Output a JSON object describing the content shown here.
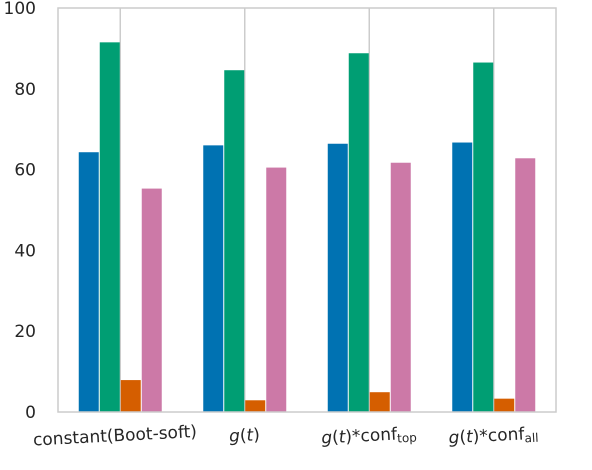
{
  "chart_data": {
    "type": "bar",
    "title": "",
    "xlabel": "",
    "ylabel": "",
    "ylim": [
      0,
      100
    ],
    "yticks": [
      0,
      20,
      40,
      60,
      80,
      100
    ],
    "grid": "vertical gridlines at category centers",
    "legend": "none",
    "categories": [
      {
        "label": "constant(Boot-soft)",
        "parts": [
          {
            "t": "constant(Boot-soft)"
          }
        ]
      },
      {
        "label": "g(t)",
        "parts": [
          {
            "t": "g",
            "i": true
          },
          {
            "t": "("
          },
          {
            "t": "t",
            "i": true
          },
          {
            "t": ")"
          }
        ]
      },
      {
        "label": "g(t)*conf_top",
        "parts": [
          {
            "t": "g",
            "i": true
          },
          {
            "t": "("
          },
          {
            "t": "t",
            "i": true
          },
          {
            "t": ")*conf"
          },
          {
            "t": "top",
            "sub": true
          }
        ]
      },
      {
        "label": "g(t)*conf_all",
        "parts": [
          {
            "t": "g",
            "i": true
          },
          {
            "t": "("
          },
          {
            "t": "t",
            "i": true
          },
          {
            "t": ")*conf"
          },
          {
            "t": "all",
            "sub": true
          }
        ]
      }
    ],
    "series": [
      {
        "color": "#0072b2",
        "values": [
          64.3,
          66.0,
          66.4,
          66.7
        ]
      },
      {
        "color": "#009e73",
        "values": [
          91.5,
          84.6,
          88.8,
          86.5
        ]
      },
      {
        "color": "#d55e00",
        "values": [
          7.9,
          2.9,
          4.9,
          3.3
        ]
      },
      {
        "color": "#cc79a7",
        "values": [
          55.3,
          60.5,
          61.7,
          62.8
        ]
      }
    ]
  }
}
